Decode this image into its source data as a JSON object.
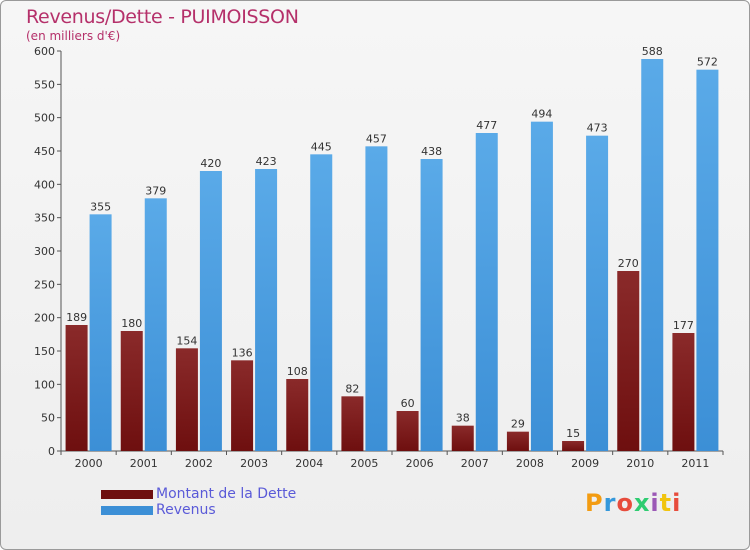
{
  "title": "Revenus/Dette - PUIMOISSON",
  "subtitle": "(en milliers d'€)",
  "logo": {
    "text": "Proxiti",
    "letters": [
      "P",
      "r",
      "o",
      "x",
      "i",
      "t",
      "i"
    ],
    "colors": [
      "#f39c12",
      "#3498db",
      "#e74c3c",
      "#2ecc71",
      "#9b59b6",
      "#f1c40f",
      "#e74c3c"
    ]
  },
  "colors": {
    "dette": "#6e0f0f",
    "revenus": "#3c8fd6"
  },
  "chart_data": {
    "type": "bar",
    "categories": [
      "2000",
      "2001",
      "2002",
      "2003",
      "2004",
      "2005",
      "2006",
      "2007",
      "2008",
      "2009",
      "2010",
      "2011"
    ],
    "series": [
      {
        "name": "Montant de la Dette",
        "values": [
          189,
          180,
          154,
          136,
          108,
          82,
          60,
          38,
          29,
          15,
          270,
          177
        ]
      },
      {
        "name": "Revenus",
        "values": [
          355,
          379,
          420,
          423,
          445,
          457,
          438,
          477,
          494,
          473,
          588,
          572
        ]
      }
    ],
    "ylim": [
      0,
      600
    ],
    "yticks": [
      0,
      50,
      100,
      150,
      200,
      250,
      300,
      350,
      400,
      450,
      500,
      550,
      600
    ],
    "grid": false,
    "legend": "bottom-left"
  }
}
